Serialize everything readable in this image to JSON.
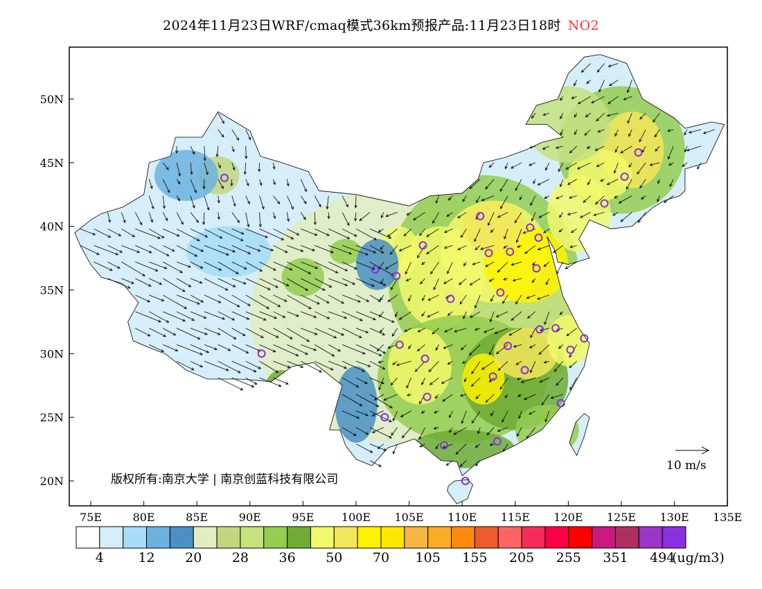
{
  "title": {
    "main": "2024年11月23日WRF/cmaq模式36km预报产品:11月23日18时",
    "species": "NO2",
    "species_color": "#ff3030"
  },
  "map": {
    "lon_range": [
      73,
      135
    ],
    "lat_range": [
      18,
      54
    ],
    "lat_labels": [
      "50N",
      "45N",
      "40N",
      "35N",
      "30N",
      "25N",
      "20N"
    ],
    "lat_values": [
      50,
      45,
      40,
      35,
      30,
      25,
      20
    ],
    "lon_labels": [
      "75E",
      "80E",
      "85E",
      "90E",
      "95E",
      "100E",
      "105E",
      "110E",
      "115E",
      "120E",
      "125E",
      "130E",
      "135E"
    ],
    "lon_values": [
      75,
      80,
      85,
      90,
      95,
      100,
      105,
      110,
      115,
      120,
      125,
      130,
      135
    ],
    "copyright": "版权所有:南京大学 | 南京创蓝科技有限公司",
    "wind_scale_label": "10 m/s"
  },
  "colorbar": {
    "colors": [
      "#ffffff",
      "#d6eefa",
      "#a6dcf5",
      "#6cb1df",
      "#4a8fc4",
      "#e1ecc0",
      "#c2d67f",
      "#c6e17e",
      "#94cd50",
      "#70ab35",
      "#f1f96a",
      "#f3e65a",
      "#fef200",
      "#ffe600",
      "#f7b541",
      "#fbac26",
      "#fc8a0a",
      "#ef5a2d",
      "#fe6464",
      "#f52c57",
      "#ff0046",
      "#fe0000",
      "#cb1780",
      "#af2f5f",
      "#9a35c8",
      "#8a2ee2"
    ],
    "labels": [
      "4",
      "12",
      "20",
      "28",
      "36",
      "50",
      "70",
      "105",
      "155",
      "205",
      "255",
      "351",
      "494"
    ],
    "unit": "(ug/m3)"
  }
}
